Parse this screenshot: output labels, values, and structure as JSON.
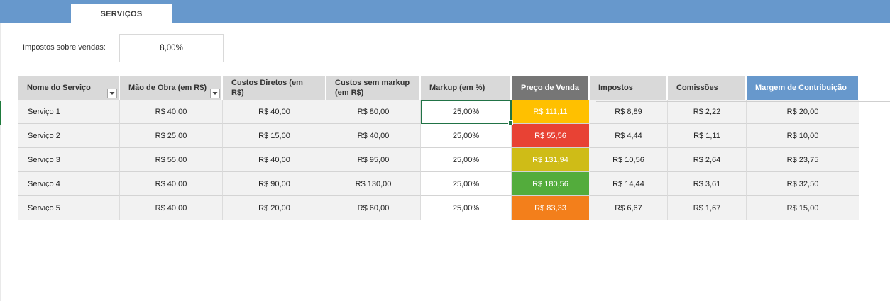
{
  "sheet_tab": {
    "label": "SERVIÇOS"
  },
  "tax": {
    "label": "Impostos sobre vendas:",
    "value": "8,00%"
  },
  "table": {
    "headers": [
      "Nome do Serviço",
      "Mão de Obra (em R$)",
      "Custos Diretos (em R$)",
      "Custos sem markup (em R$)",
      "Markup (em %)",
      "Preço de Venda",
      "Impostos",
      "Comissões",
      "Margem de Contribuição"
    ],
    "rows": [
      [
        "Serviço 1",
        "R$ 40,00",
        "R$ 40,00",
        "R$ 80,00",
        "25,00%",
        "R$ 111,11",
        "R$ 8,89",
        "R$ 2,22",
        "R$ 20,00"
      ],
      [
        "Serviço 2",
        "R$ 25,00",
        "R$ 15,00",
        "R$ 40,00",
        "25,00%",
        "R$ 55,56",
        "R$ 4,44",
        "R$ 1,11",
        "R$ 10,00"
      ],
      [
        "Serviço 3",
        "R$ 55,00",
        "R$ 40,00",
        "R$ 95,00",
        "25,00%",
        "R$ 131,94",
        "R$ 10,56",
        "R$ 2,64",
        "R$ 23,75"
      ],
      [
        "Serviço 4",
        "R$ 40,00",
        "R$ 90,00",
        "R$ 130,00",
        "25,00%",
        "R$ 180,56",
        "R$ 14,44",
        "R$ 3,61",
        "R$ 32,50"
      ],
      [
        "Serviço 5",
        "R$ 40,00",
        "R$ 20,00",
        "R$ 60,00",
        "25,00%",
        "R$ 83,33",
        "R$ 6,67",
        "R$ 1,67",
        "R$ 15,00"
      ]
    ],
    "price_colors": [
      "#ffc000",
      "#e84234",
      "#cfbc17",
      "#53ac3c",
      "#f37f1b"
    ]
  },
  "colors": {
    "header_bar": "#6798cc",
    "header_bg": "#d9d9d9",
    "price_header": "#767676",
    "margin_header": "#6798cc",
    "selection": "#217346"
  },
  "icons": {
    "filter_dropdown": "chevron-down-icon"
  }
}
